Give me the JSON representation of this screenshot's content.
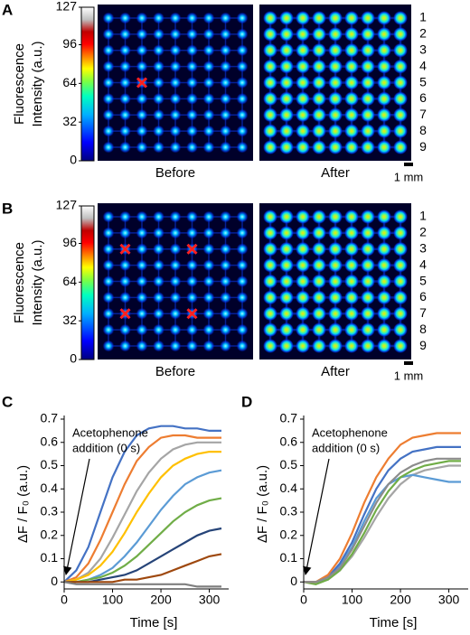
{
  "panels": [
    {
      "letter": "A",
      "colorbar": {
        "label": [
          "Fluorescence",
          "Intensity (a.u.)"
        ],
        "lim": [
          0,
          127
        ],
        "ticks": [
          0,
          32,
          64,
          96,
          127
        ]
      },
      "images": [
        "Before",
        "After"
      ],
      "rows": [
        "1",
        "2",
        "3",
        "4",
        "5",
        "6",
        "7",
        "8",
        "9"
      ],
      "scale_bar": "1 mm"
    },
    {
      "letter": "B",
      "colorbar": {
        "label": [
          "Fluorescence",
          "Intensity (a.u.)"
        ],
        "lim": [
          0,
          127
        ],
        "ticks": [
          0,
          32,
          64,
          96,
          127
        ]
      },
      "images": [
        "Before",
        "After"
      ],
      "rows": [
        "1",
        "2",
        "3",
        "4",
        "5",
        "6",
        "7",
        "8",
        "9"
      ],
      "scale_bar": "1 mm"
    }
  ],
  "chart_data": [
    {
      "type": "line",
      "letter": "C",
      "annotation": [
        "Acetophenone",
        "addition (0 s)"
      ],
      "x_label": "Time [s]",
      "y_label": "ΔF / F₀ (a.u.)",
      "x": [
        0,
        25,
        50,
        75,
        100,
        125,
        150,
        175,
        200,
        225,
        250,
        275,
        300,
        325
      ],
      "series": [
        {
          "color": "#4472c4",
          "values": [
            0,
            0.05,
            0.15,
            0.3,
            0.45,
            0.56,
            0.63,
            0.66,
            0.67,
            0.67,
            0.66,
            0.66,
            0.65,
            0.65
          ]
        },
        {
          "color": "#ed7d31",
          "values": [
            0,
            0.02,
            0.08,
            0.18,
            0.3,
            0.42,
            0.52,
            0.58,
            0.62,
            0.63,
            0.63,
            0.62,
            0.62,
            0.62
          ]
        },
        {
          "color": "#a5a5a5",
          "values": [
            0,
            0.01,
            0.04,
            0.1,
            0.19,
            0.29,
            0.39,
            0.47,
            0.53,
            0.57,
            0.59,
            0.6,
            0.6,
            0.6
          ]
        },
        {
          "color": "#ffc000",
          "values": [
            0,
            0.01,
            0.03,
            0.07,
            0.13,
            0.21,
            0.3,
            0.38,
            0.45,
            0.5,
            0.53,
            0.55,
            0.56,
            0.56
          ]
        },
        {
          "color": "#5b9bd5",
          "values": [
            0,
            0,
            0.01,
            0.03,
            0.06,
            0.11,
            0.17,
            0.24,
            0.31,
            0.37,
            0.42,
            0.45,
            0.47,
            0.48
          ]
        },
        {
          "color": "#70ad47",
          "values": [
            0,
            0,
            0.01,
            0.02,
            0.04,
            0.07,
            0.11,
            0.16,
            0.21,
            0.26,
            0.3,
            0.33,
            0.35,
            0.36
          ]
        },
        {
          "color": "#264478",
          "values": [
            0,
            0,
            0,
            0.01,
            0.02,
            0.03,
            0.05,
            0.08,
            0.11,
            0.14,
            0.17,
            0.2,
            0.22,
            0.23
          ]
        },
        {
          "color": "#9e480e",
          "values": [
            0,
            0,
            0,
            0,
            0,
            0.01,
            0.01,
            0.02,
            0.03,
            0.05,
            0.07,
            0.09,
            0.11,
            0.12
          ]
        },
        {
          "color": "#7f7f7f",
          "values": [
            0,
            -0.01,
            -0.01,
            -0.01,
            -0.01,
            -0.01,
            -0.01,
            -0.01,
            -0.01,
            -0.01,
            -0.01,
            -0.02,
            -0.02,
            -0.02
          ]
        }
      ],
      "xlim": [
        0,
        340
      ],
      "ylim": [
        -0.03,
        0.7
      ],
      "xticks": [
        0,
        100,
        200,
        300
      ],
      "yticks": [
        0,
        0.1,
        0.2,
        0.3,
        0.4,
        0.5,
        0.6,
        0.7
      ]
    },
    {
      "type": "line",
      "letter": "D",
      "annotation": [
        "Acetophenone",
        "addition (0 s)"
      ],
      "x_label": "Time [s]",
      "y_label": "ΔF / F₀ (a.u.)",
      "x": [
        0,
        25,
        50,
        75,
        100,
        125,
        150,
        175,
        200,
        225,
        250,
        275,
        300,
        325
      ],
      "series": [
        {
          "color": "#a5a5a5",
          "values": [
            0,
            0,
            0.01,
            0.05,
            0.11,
            0.19,
            0.28,
            0.36,
            0.42,
            0.46,
            0.48,
            0.49,
            0.5,
            0.5
          ]
        },
        {
          "color": "#5b9bd5",
          "values": [
            0,
            0,
            0.02,
            0.07,
            0.15,
            0.26,
            0.36,
            0.42,
            0.45,
            0.46,
            0.45,
            0.44,
            0.43,
            0.43
          ]
        },
        {
          "color": "#70ad47",
          "values": [
            0,
            -0.01,
            0.01,
            0.05,
            0.12,
            0.21,
            0.31,
            0.39,
            0.45,
            0.48,
            0.5,
            0.51,
            0.52,
            0.52
          ]
        },
        {
          "color": "#4472c4",
          "values": [
            0,
            0,
            0.02,
            0.08,
            0.17,
            0.29,
            0.4,
            0.48,
            0.53,
            0.56,
            0.57,
            0.58,
            0.58,
            0.58
          ]
        },
        {
          "color": "#ed7d31",
          "values": [
            0,
            0,
            0.03,
            0.1,
            0.21,
            0.34,
            0.45,
            0.53,
            0.59,
            0.62,
            0.63,
            0.64,
            0.64,
            0.64
          ]
        },
        {
          "color": "#8c8c8c",
          "values": [
            0,
            0,
            0.02,
            0.06,
            0.14,
            0.24,
            0.34,
            0.42,
            0.47,
            0.5,
            0.52,
            0.53,
            0.53,
            0.53
          ]
        }
      ],
      "xlim": [
        0,
        340
      ],
      "ylim": [
        -0.03,
        0.7
      ],
      "xticks": [
        0,
        100,
        200,
        300
      ],
      "yticks": [
        0,
        0.1,
        0.2,
        0.3,
        0.4,
        0.5,
        0.6,
        0.7
      ]
    }
  ]
}
